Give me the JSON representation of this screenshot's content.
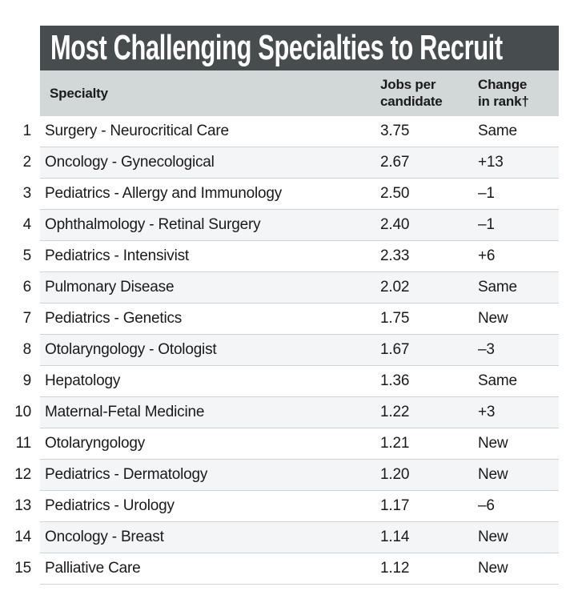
{
  "title": "Most Challenging Specialties to Recruit",
  "columns": {
    "specialty": "Specialty",
    "jobs_per_candidate": "Jobs per\ncandidate",
    "change_in_rank": "Change\nin rank†"
  },
  "colors": {
    "title_bar_bg": "#474c4e",
    "title_text": "#ffffff",
    "header_bg": "#d2d8d8",
    "row_shade": "#f3f5f7",
    "separator": "#ccd4d8",
    "body_text": "#1a1a1a"
  },
  "chart_data": {
    "type": "table",
    "title": "Most Challenging Specialties to Recruit",
    "columns": [
      "Specialty",
      "Jobs per candidate",
      "Change in rank†"
    ],
    "rows": [
      {
        "rank": "1",
        "specialty": "Surgery - Neurocritical Care",
        "jobs_per_candidate": "3.75",
        "change_in_rank": "Same"
      },
      {
        "rank": "2",
        "specialty": "Oncology - Gynecological",
        "jobs_per_candidate": "2.67",
        "change_in_rank": "+13"
      },
      {
        "rank": "3",
        "specialty": "Pediatrics - Allergy and Immunology",
        "jobs_per_candidate": "2.50",
        "change_in_rank": "–1"
      },
      {
        "rank": "4",
        "specialty": "Ophthalmology - Retinal Surgery",
        "jobs_per_candidate": "2.40",
        "change_in_rank": "–1"
      },
      {
        "rank": "5",
        "specialty": "Pediatrics - Intensivist",
        "jobs_per_candidate": "2.33",
        "change_in_rank": "+6"
      },
      {
        "rank": "6",
        "specialty": "Pulmonary Disease",
        "jobs_per_candidate": "2.02",
        "change_in_rank": "Same"
      },
      {
        "rank": "7",
        "specialty": "Pediatrics - Genetics",
        "jobs_per_candidate": "1.75",
        "change_in_rank": "New"
      },
      {
        "rank": "8",
        "specialty": "Otolaryngology - Otologist",
        "jobs_per_candidate": "1.67",
        "change_in_rank": "–3"
      },
      {
        "rank": "9",
        "specialty": "Hepatology",
        "jobs_per_candidate": "1.36",
        "change_in_rank": "Same"
      },
      {
        "rank": "10",
        "specialty": "Maternal-Fetal Medicine",
        "jobs_per_candidate": "1.22",
        "change_in_rank": "+3"
      },
      {
        "rank": "11",
        "specialty": "Otolaryngology",
        "jobs_per_candidate": "1.21",
        "change_in_rank": "New"
      },
      {
        "rank": "12",
        "specialty": "Pediatrics - Dermatology",
        "jobs_per_candidate": "1.20",
        "change_in_rank": "New"
      },
      {
        "rank": "13",
        "specialty": "Pediatrics - Urology",
        "jobs_per_candidate": "1.17",
        "change_in_rank": "–6"
      },
      {
        "rank": "14",
        "specialty": "Oncology - Breast",
        "jobs_per_candidate": "1.14",
        "change_in_rank": "New"
      },
      {
        "rank": "15",
        "specialty": "Palliative Care",
        "jobs_per_candidate": "1.12",
        "change_in_rank": "New"
      }
    ]
  }
}
